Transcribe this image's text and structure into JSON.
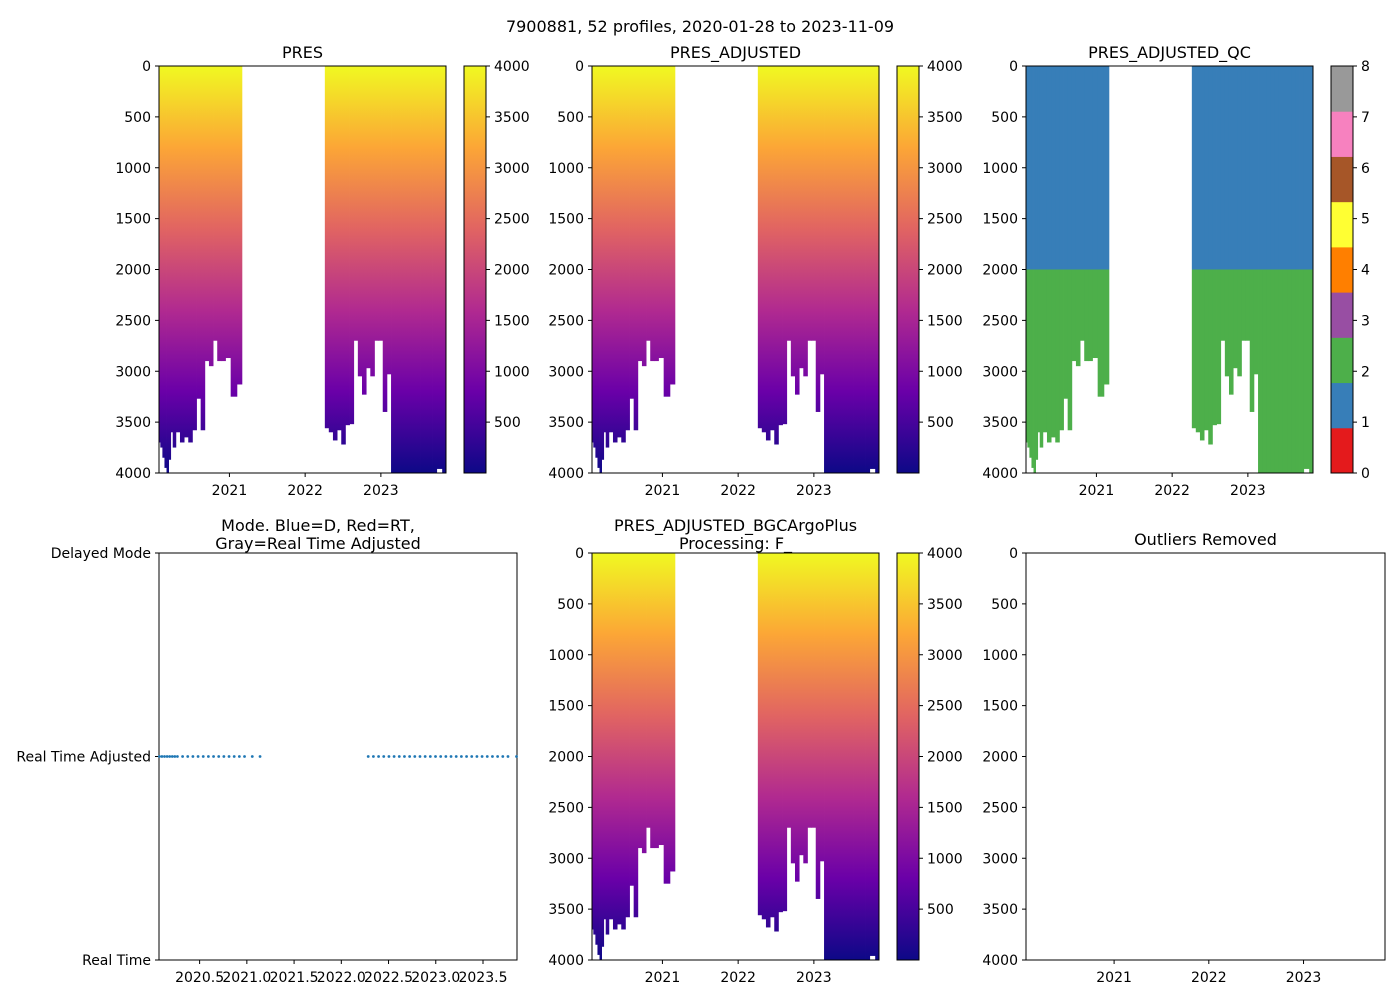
{
  "title": "7900881, 52 profiles, 2020-01-28 to 2023-11-09",
  "colors": {
    "plasma": [
      "#f0f921",
      "#fca636",
      "#e16462",
      "#b12a90",
      "#6a00a8",
      "#0d0887"
    ],
    "qc_scale": [
      "#e41a1c",
      "#377eb8",
      "#4daf4a",
      "#984ea3",
      "#ff7f00",
      "#ffff33",
      "#a65628",
      "#f781bf",
      "#999999"
    ],
    "mode_marker": "#1f77b4"
  },
  "chart_data": [
    {
      "id": "pres",
      "type": "heatmap",
      "title": "PRES",
      "x_ticks": [
        "2021",
        "2022",
        "2023"
      ],
      "y_ticks": [
        "0",
        "500",
        "1000",
        "1500",
        "2000",
        "2500",
        "3000",
        "3500",
        "4000"
      ],
      "ylim": [
        4000,
        0
      ],
      "colorbar_ticks": [
        "500",
        "1000",
        "1500",
        "2000",
        "2500",
        "3000",
        "3500",
        "4000"
      ],
      "colorbar_range": [
        0,
        4000
      ],
      "colormap": "plasma_r",
      "profiles": {
        "dates": [
          "2020-01-28",
          "2020-02-07",
          "2020-02-17",
          "2020-02-27",
          "2020-03-08",
          "2020-03-18",
          "2020-03-28",
          "2020-04-07",
          "2020-04-27",
          "2020-05-17",
          "2020-06-06",
          "2020-06-26",
          "2020-07-16",
          "2020-08-05",
          "2020-08-25",
          "2020-09-14",
          "2020-10-04",
          "2020-10-24",
          "2020-11-13",
          "2020-12-03",
          "2020-12-23",
          "2021-01-22",
          "2021-02-21",
          "2022-04-15",
          "2022-05-05",
          "2022-05-25",
          "2022-06-14",
          "2022-07-04",
          "2022-07-24",
          "2022-08-13",
          "2022-09-02",
          "2022-09-22",
          "2022-10-12",
          "2022-11-01",
          "2022-11-21",
          "2022-12-11",
          "2022-12-31",
          "2023-01-20",
          "2023-02-09",
          "2023-03-01",
          "2023-03-21",
          "2023-04-10",
          "2023-04-30",
          "2023-05-20",
          "2023-06-09",
          "2023-06-29",
          "2023-07-19",
          "2023-08-08",
          "2023-08-28",
          "2023-09-17",
          "2023-10-07",
          "2023-11-09"
        ],
        "max_depth": [
          3700,
          3750,
          3850,
          3950,
          4000,
          3870,
          3600,
          3750,
          3600,
          3700,
          3650,
          3700,
          3580,
          3270,
          3580,
          2900,
          2950,
          2700,
          2900,
          2900,
          2870,
          3250,
          3130,
          3560,
          3600,
          3680,
          3580,
          3720,
          3530,
          3520,
          2700,
          3050,
          3230,
          2970,
          3050,
          2700,
          2700,
          3400,
          3030,
          4000,
          4000,
          4000,
          4000,
          4000,
          4000,
          4000,
          4000,
          4000,
          4000,
          4000,
          3960,
          4000
        ]
      }
    },
    {
      "id": "pres_adjusted",
      "type": "heatmap",
      "title": "PRES_ADJUSTED",
      "x_ticks": [
        "2021",
        "2022",
        "2023"
      ],
      "y_ticks": [
        "0",
        "500",
        "1000",
        "1500",
        "2000",
        "2500",
        "3000",
        "3500",
        "4000"
      ],
      "ylim": [
        4000,
        0
      ],
      "colorbar_ticks": [
        "500",
        "1000",
        "1500",
        "2000",
        "2500",
        "3000",
        "3500",
        "4000"
      ],
      "colorbar_range": [
        0,
        4000
      ],
      "colormap": "plasma_r",
      "same_profiles_as": "pres"
    },
    {
      "id": "pres_adjusted_qc",
      "type": "heatmap",
      "title": "PRES_ADJUSTED_QC",
      "x_ticks": [
        "2021",
        "2022",
        "2023"
      ],
      "y_ticks": [
        "0",
        "500",
        "1000",
        "1500",
        "2000",
        "2500",
        "3000",
        "3500",
        "4000"
      ],
      "ylim": [
        4000,
        0
      ],
      "colorbar_ticks": [
        "0",
        "1",
        "2",
        "3",
        "4",
        "5",
        "6",
        "7",
        "8"
      ],
      "colorbar_range": [
        0,
        8
      ],
      "qc_bands": [
        {
          "from_pressure": 0,
          "to_pressure": 2000,
          "qc_flag": 1
        },
        {
          "from_pressure": 2000,
          "to_pressure": 4000,
          "qc_flag": 2
        }
      ],
      "same_profiles_as": "pres"
    },
    {
      "id": "mode",
      "type": "scatter",
      "title": "Mode. Blue=D, Red=RT,\nGray=Real Time Adjusted",
      "x_ticks": [
        "2020.5",
        "2021.0",
        "2021.5",
        "2022.0",
        "2022.5",
        "2023.0",
        "2023.5"
      ],
      "xlim": [
        2020.07,
        2023.86
      ],
      "y_ticks": [
        "Delayed Mode",
        "Real Time Adjusted",
        "Real Time"
      ],
      "y_level_values": [
        2,
        1,
        0
      ],
      "ylim": [
        0,
        2
      ],
      "point_level": 1,
      "point_color": "#1f77b4",
      "same_profiles_as": "pres"
    },
    {
      "id": "pres_adjusted_bgcargoplus",
      "type": "heatmap",
      "title": "PRES_ADJUSTED_BGCArgoPlus\nProcessing: F_",
      "x_ticks": [
        "2021",
        "2022",
        "2023"
      ],
      "y_ticks": [
        "0",
        "500",
        "1000",
        "1500",
        "2000",
        "2500",
        "3000",
        "3500",
        "4000"
      ],
      "ylim": [
        4000,
        0
      ],
      "colorbar_ticks": [
        "500",
        "1000",
        "1500",
        "2000",
        "2500",
        "3000",
        "3500",
        "4000"
      ],
      "colorbar_range": [
        0,
        4000
      ],
      "colormap": "plasma_r",
      "same_profiles_as": "pres"
    },
    {
      "id": "outliers",
      "type": "scatter",
      "title": "Outliers Removed",
      "x_ticks": [
        "2021",
        "2022",
        "2023"
      ],
      "y_ticks": [
        "0",
        "500",
        "1000",
        "1500",
        "2000",
        "2500",
        "3000",
        "3500",
        "4000"
      ],
      "ylim": [
        4000,
        0
      ],
      "points": []
    }
  ]
}
